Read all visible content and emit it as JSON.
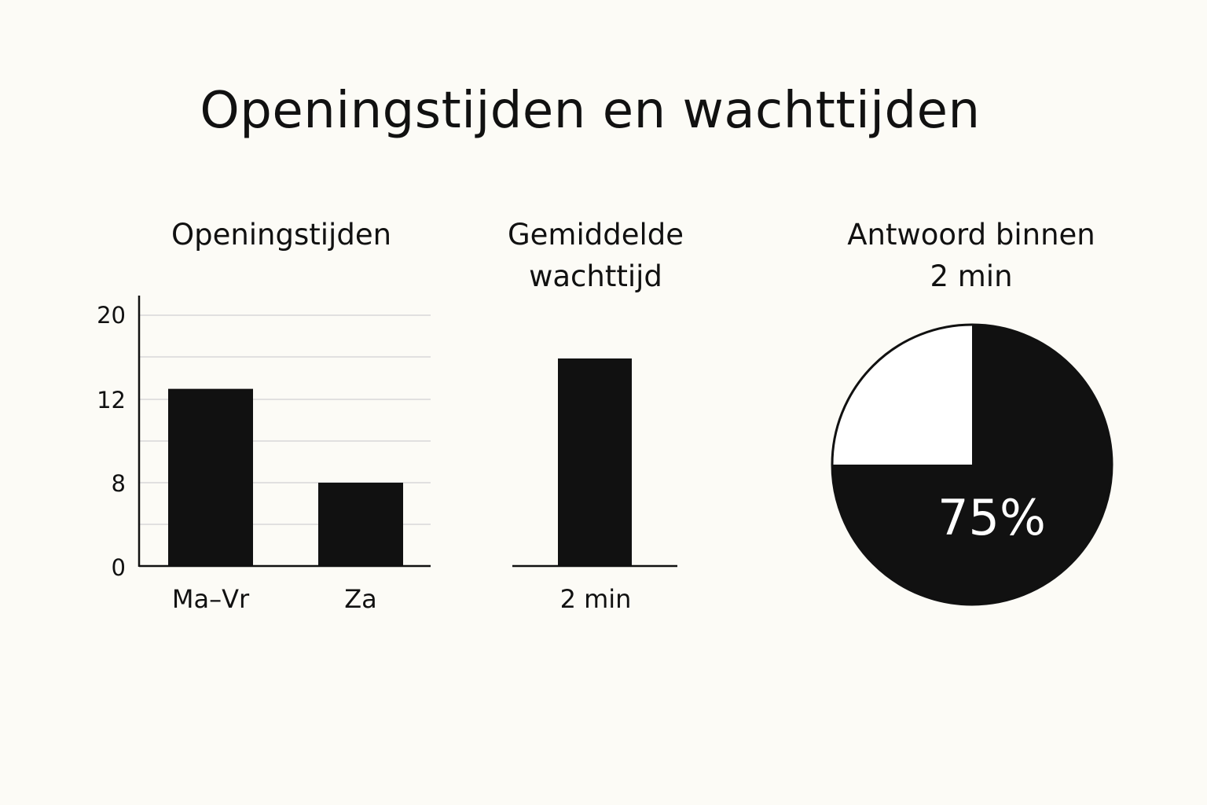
{
  "title": "Openingstijden en wachttijden",
  "chart_data": [
    {
      "type": "bar",
      "title": "Openingstijden",
      "categories": [
        "Ma–Vr",
        "Za"
      ],
      "values": [
        13,
        8
      ],
      "yticks": [
        "20",
        "12",
        "8",
        "0"
      ],
      "grid": true,
      "color": "#111111"
    },
    {
      "type": "bar",
      "title_lines": [
        "Gemiddelde",
        "wachttijd"
      ],
      "categories": [
        "2 min"
      ],
      "values": [
        2
      ],
      "color": "#111111"
    },
    {
      "type": "pie",
      "title_lines": [
        "Antwoord binnen",
        "2 min"
      ],
      "slices": [
        {
          "value": 75,
          "color": "#111111"
        },
        {
          "value": 25,
          "color": "#ffffff"
        }
      ],
      "label": "75%"
    }
  ]
}
